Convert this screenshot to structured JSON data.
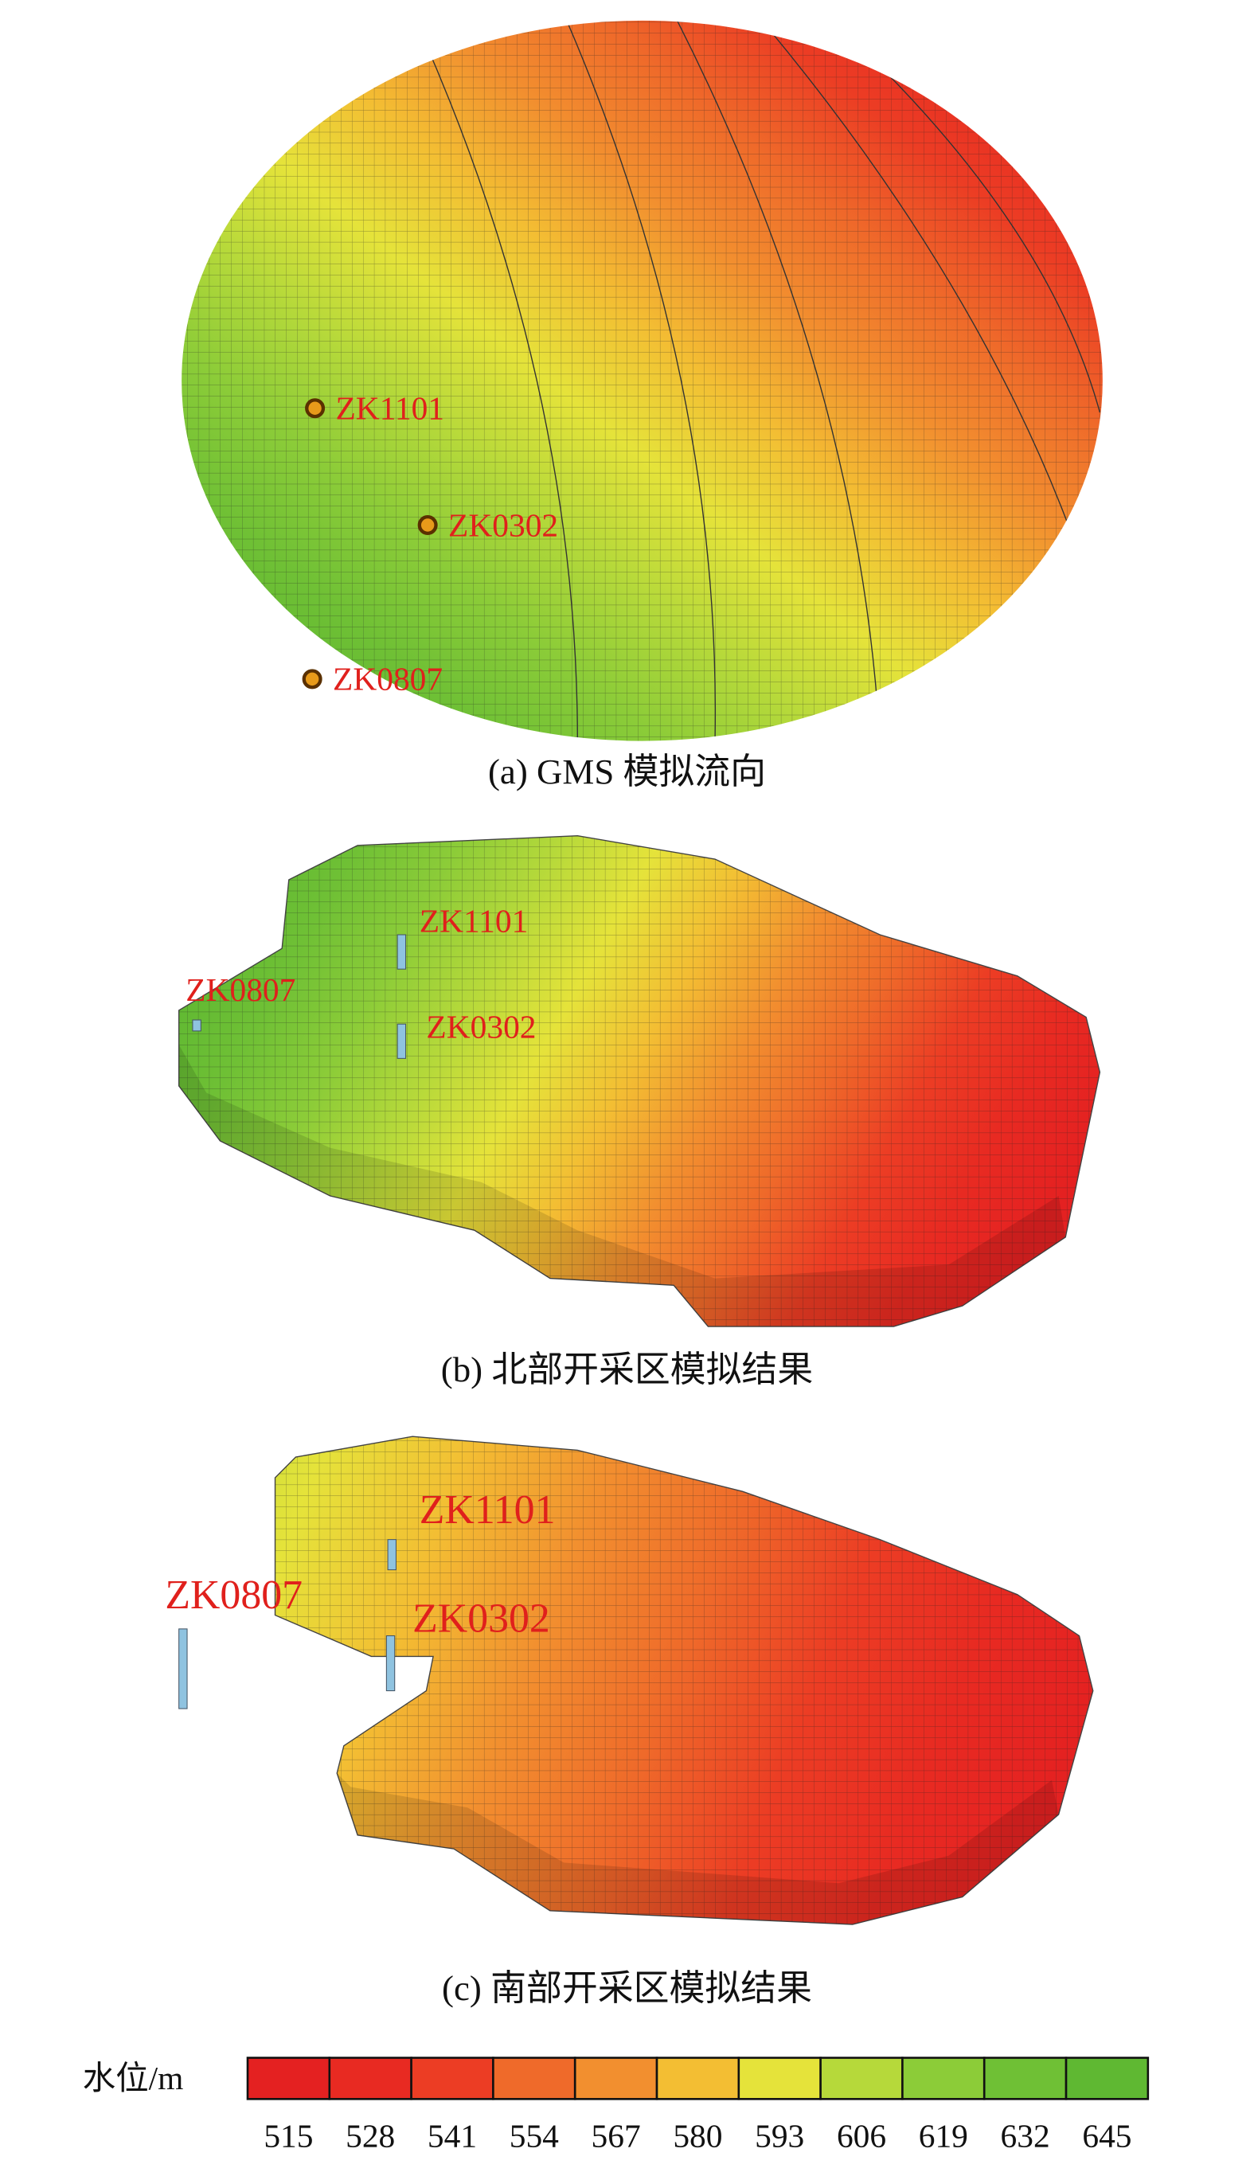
{
  "panels": [
    {
      "caption": "(a) GMS 模拟流向",
      "wells": [
        "ZK1101",
        "ZK0302",
        "ZK0807"
      ]
    },
    {
      "caption": "(b) 北部开采区模拟结果",
      "wells": [
        "ZK1101",
        "ZK0807",
        "ZK0302"
      ]
    },
    {
      "caption": "(c) 南部开采区模拟结果",
      "wells": [
        "ZK1101",
        "ZK0807",
        "ZK0302"
      ]
    }
  ],
  "legend": {
    "label": "水位/m",
    "ticks": [
      515,
      528,
      541,
      554,
      567,
      580,
      593,
      606,
      619,
      632,
      645
    ],
    "colors": [
      "#e42121",
      "#e82a22",
      "#ec3d24",
      "#ef6a2a",
      "#f28f2f",
      "#f3be33",
      "#e5e33a",
      "#b6d93a",
      "#8ccc38",
      "#6fc035",
      "#5fb832"
    ]
  }
}
